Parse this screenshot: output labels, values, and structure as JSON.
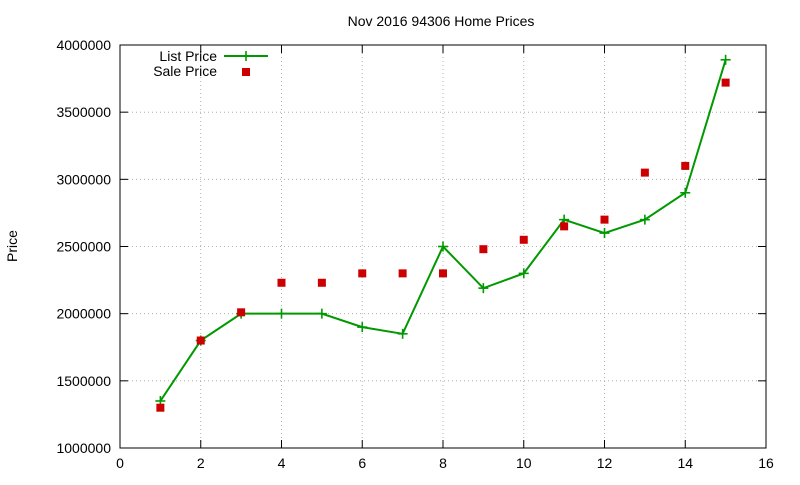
{
  "chart_data": {
    "type": "line",
    "title": "Nov 2016 94306 Home Prices",
    "xlabel": "",
    "ylabel": "Price",
    "xlim": [
      0,
      16
    ],
    "ylim": [
      1000000,
      4000000
    ],
    "xticks": [
      0,
      2,
      4,
      6,
      8,
      10,
      12,
      14,
      16
    ],
    "yticks": [
      1000000,
      1500000,
      2000000,
      2500000,
      3000000,
      3500000,
      4000000
    ],
    "grid": true,
    "legend": "top-left",
    "series": [
      {
        "name": "List Price",
        "kind": "line-with-plus-markers",
        "color": "#009900",
        "x": [
          1,
          2,
          3,
          4,
          5,
          6,
          7,
          8,
          9,
          10,
          11,
          12,
          13,
          14,
          15
        ],
        "y": [
          1350000,
          1800000,
          2000000,
          2000000,
          2000000,
          1900000,
          1850000,
          2500000,
          2190000,
          2300000,
          2700000,
          2600000,
          2700000,
          2900000,
          3890000
        ]
      },
      {
        "name": "Sale Price",
        "kind": "square-markers",
        "color": "#cc0000",
        "x": [
          1,
          2,
          3,
          4,
          5,
          6,
          7,
          8,
          9,
          10,
          11,
          12,
          13,
          14,
          15
        ],
        "y": [
          1300000,
          1800000,
          2010000,
          2230000,
          2230000,
          2300000,
          2300000,
          2300000,
          2480000,
          2550000,
          2650000,
          2700000,
          3050000,
          3100000,
          3720000
        ]
      }
    ]
  }
}
